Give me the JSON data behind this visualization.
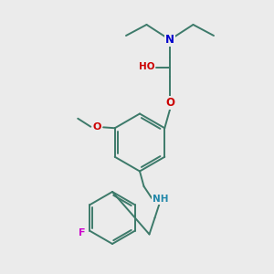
{
  "bg_color": "#ebebeb",
  "bond_color": "#3d7a6a",
  "bond_width": 1.4,
  "atom_colors": {
    "N_blue": "#0000cc",
    "O_red": "#cc0000",
    "F_magenta": "#cc00cc",
    "N_sec": "#2288aa"
  },
  "figsize": [
    3.0,
    3.0
  ],
  "dpi": 100,
  "xlim": [
    0,
    10
  ],
  "ylim": [
    0,
    10
  ]
}
